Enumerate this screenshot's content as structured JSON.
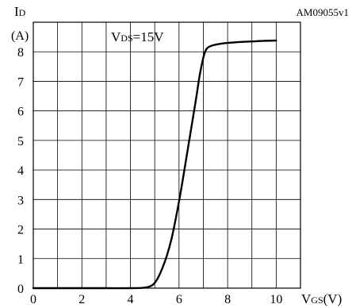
{
  "figure_id": "AM09055v1",
  "chart_data": {
    "type": "line",
    "ylabel_main": "I",
    "ylabel_sub": "D",
    "ylabel_unit": "(A)",
    "xlabel_main": "V",
    "xlabel_sub": "GS",
    "xlabel_unit": "(V)",
    "annotation_main": "V",
    "annotation_sub": "DS",
    "annotation_value": "=15V",
    "xlim": [
      0,
      11
    ],
    "ylim": [
      0,
      9
    ],
    "grid": true,
    "x_ticks": [
      0,
      2,
      4,
      6,
      8,
      10
    ],
    "x_tick_labels": [
      "0",
      "2",
      "4",
      "6",
      "8",
      "10"
    ],
    "y_ticks": [
      0,
      1,
      2,
      3,
      4,
      5,
      6,
      7,
      8
    ],
    "y_tick_labels": [
      "0",
      "1",
      "2",
      "3",
      "4",
      "5",
      "6",
      "7",
      "8"
    ],
    "series": [
      {
        "x": [
          0,
          1,
          2,
          3,
          4,
          4.6,
          4.9,
          5.1,
          5.3,
          5.5,
          5.7,
          5.9,
          6.1,
          6.3,
          6.5,
          6.7,
          6.85,
          7.0,
          7.1,
          7.2,
          7.4,
          7.7,
          8.0,
          8.5,
          9.0,
          9.5,
          10.0
        ],
        "y": [
          0,
          0,
          0,
          0,
          0,
          0.02,
          0.1,
          0.3,
          0.65,
          1.1,
          1.7,
          2.5,
          3.4,
          4.4,
          5.4,
          6.4,
          7.2,
          7.8,
          8.05,
          8.15,
          8.22,
          8.27,
          8.3,
          8.33,
          8.35,
          8.37,
          8.38
        ]
      }
    ]
  }
}
